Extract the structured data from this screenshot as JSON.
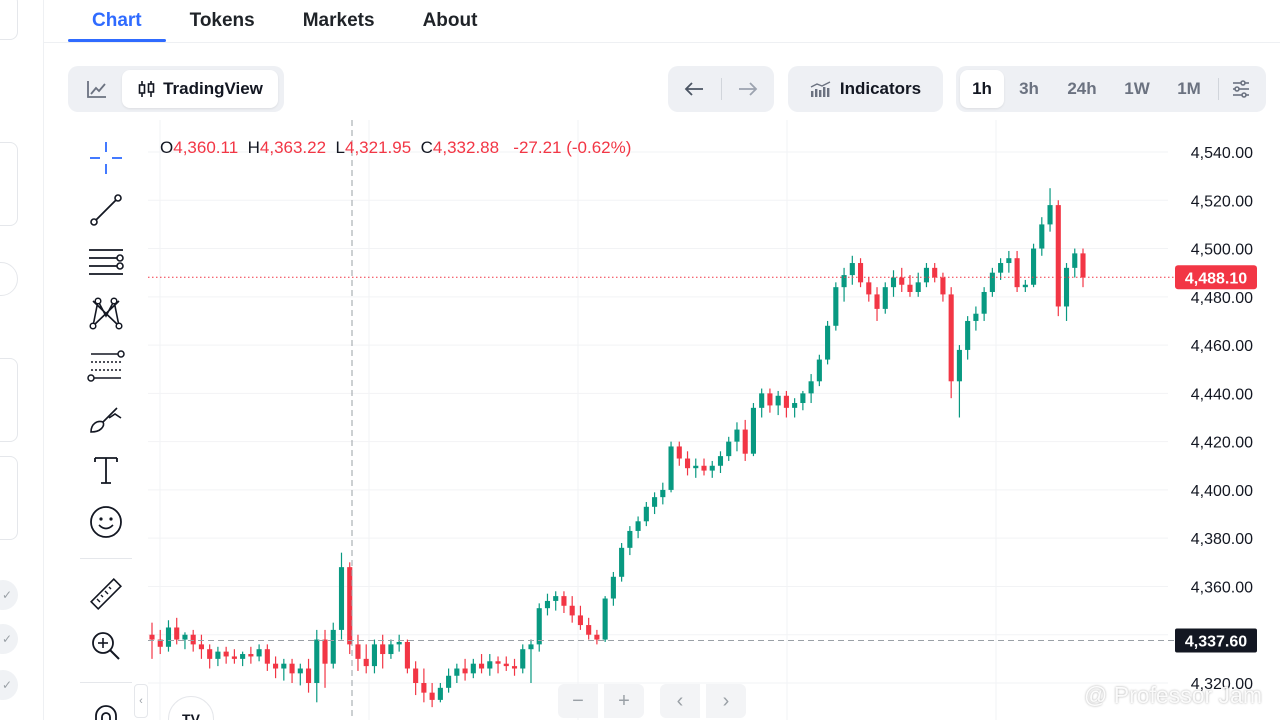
{
  "tabs": [
    {
      "label": "Chart",
      "active": true
    },
    {
      "label": "Tokens",
      "active": false
    },
    {
      "label": "Markets",
      "active": false
    },
    {
      "label": "About",
      "active": false
    }
  ],
  "toolbar": {
    "chart_type_icon": "line-chart-icon",
    "tradingview_label": "TradingView",
    "tradingview_icon": "candles-icon",
    "back_icon": "arrow-left-icon",
    "forward_icon": "arrow-right-icon",
    "indicators_label": "Indicators",
    "timeframes": [
      "1h",
      "3h",
      "24h",
      "1W",
      "1M"
    ],
    "active_timeframe": "1h",
    "settings_icon": "sliders-icon"
  },
  "drawing_tools": [
    "crosshair-icon",
    "trend-line-icon",
    "horizontal-lines-icon",
    "pattern-icon",
    "fib-retracement-icon",
    "brush-icon",
    "text-icon",
    "emoji-icon",
    "ruler-icon",
    "zoom-in-icon",
    "magnet-icon"
  ],
  "ohlc": {
    "o_label": "O",
    "o": "4,360.11",
    "h_label": "H",
    "h": "4,363.22",
    "l_label": "L",
    "l": "4,321.95",
    "c_label": "C",
    "c": "4,332.88",
    "change": "-27.21 (-0.62%)"
  },
  "price_labels": {
    "current": "4,488.10",
    "crosshair": "4,337.60"
  },
  "bottom_controls": {
    "zoom_out": "−",
    "zoom_in": "+",
    "scroll_left": "‹",
    "scroll_right": "›",
    "collapse": "‹"
  },
  "logo_text": "TV",
  "watermark": "@ Professor Jam",
  "colors": {
    "up": "#089981",
    "down": "#f23645",
    "accent": "#2f6bff",
    "crosshair_label_bg": "#131722"
  },
  "chart_data": {
    "type": "candlestick",
    "interval": "1h",
    "y_ticks": [
      "4,540.00",
      "4,520.00",
      "4,500.00",
      "4,480.00",
      "4,460.00",
      "4,440.00",
      "4,420.00",
      "4,400.00",
      "4,380.00",
      "4,360.00",
      "4,340.00",
      "4,320.00"
    ],
    "ylim": [
      4318,
      4548
    ],
    "last_price": 4488.1,
    "crosshair_price": 4337.6,
    "ohlc": [
      [
        4340,
        4345,
        4330,
        4338
      ],
      [
        4338,
        4342,
        4332,
        4335
      ],
      [
        4335,
        4346,
        4333,
        4343
      ],
      [
        4343,
        4347,
        4336,
        4338
      ],
      [
        4338,
        4341,
        4334,
        4340
      ],
      [
        4340,
        4342,
        4333,
        4336
      ],
      [
        4336,
        4340,
        4330,
        4334
      ],
      [
        4334,
        4336,
        4326,
        4330
      ],
      [
        4330,
        4335,
        4327,
        4333
      ],
      [
        4333,
        4335,
        4328,
        4331
      ],
      [
        4331,
        4334,
        4328,
        4330
      ],
      [
        4330,
        4333,
        4327,
        4332
      ],
      [
        4332,
        4335,
        4328,
        4331
      ],
      [
        4331,
        4336,
        4329,
        4334
      ],
      [
        4334,
        4336,
        4325,
        4328
      ],
      [
        4328,
        4331,
        4322,
        4326
      ],
      [
        4326,
        4330,
        4321,
        4328
      ],
      [
        4328,
        4330,
        4320,
        4324
      ],
      [
        4324,
        4328,
        4319,
        4326
      ],
      [
        4326,
        4330,
        4316,
        4320
      ],
      [
        4320,
        4342,
        4312,
        4338
      ],
      [
        4338,
        4342,
        4318,
        4328
      ],
      [
        4328,
        4345,
        4326,
        4342
      ],
      [
        4342,
        4374,
        4338,
        4368
      ],
      [
        4368,
        4370,
        4332,
        4336
      ],
      [
        4336,
        4340,
        4325,
        4330
      ],
      [
        4330,
        4336,
        4324,
        4327
      ],
      [
        4327,
        4338,
        4324,
        4336
      ],
      [
        4336,
        4340,
        4326,
        4332
      ],
      [
        4332,
        4338,
        4330,
        4336
      ],
      [
        4336,
        4340,
        4333,
        4337
      ],
      [
        4337,
        4338,
        4324,
        4326
      ],
      [
        4326,
        4329,
        4315,
        4320
      ],
      [
        4320,
        4326,
        4312,
        4316
      ],
      [
        4316,
        4320,
        4310,
        4313
      ],
      [
        4313,
        4320,
        4312,
        4318
      ],
      [
        4318,
        4326,
        4316,
        4323
      ],
      [
        4323,
        4328,
        4320,
        4326
      ],
      [
        4326,
        4330,
        4321,
        4324
      ],
      [
        4324,
        4330,
        4322,
        4328
      ],
      [
        4328,
        4332,
        4324,
        4326
      ],
      [
        4326,
        4332,
        4323,
        4329
      ],
      [
        4329,
        4331,
        4324,
        4328
      ],
      [
        4328,
        4331,
        4325,
        4327
      ],
      [
        4327,
        4330,
        4323,
        4326
      ],
      [
        4326,
        4336,
        4324,
        4334
      ],
      [
        4334,
        4338,
        4320,
        4336
      ],
      [
        4336,
        4353,
        4333,
        4351
      ],
      [
        4351,
        4357,
        4348,
        4354
      ],
      [
        4354,
        4358,
        4350,
        4356
      ],
      [
        4356,
        4358,
        4349,
        4352
      ],
      [
        4352,
        4356,
        4345,
        4348
      ],
      [
        4348,
        4352,
        4342,
        4344
      ],
      [
        4344,
        4347,
        4338,
        4340
      ],
      [
        4340,
        4342,
        4336,
        4338
      ],
      [
        4338,
        4356,
        4337,
        4355
      ],
      [
        4355,
        4366,
        4352,
        4364
      ],
      [
        4364,
        4378,
        4362,
        4376
      ],
      [
        4376,
        4385,
        4373,
        4383
      ],
      [
        4383,
        4389,
        4380,
        4387
      ],
      [
        4387,
        4395,
        4385,
        4393
      ],
      [
        4393,
        4399,
        4390,
        4397
      ],
      [
        4397,
        4403,
        4394,
        4400
      ],
      [
        4400,
        4420,
        4399,
        4418
      ],
      [
        4418,
        4420,
        4410,
        4413
      ],
      [
        4413,
        4416,
        4406,
        4409
      ],
      [
        4409,
        4413,
        4405,
        4410
      ],
      [
        4410,
        4413,
        4406,
        4408
      ],
      [
        4408,
        4412,
        4405,
        4410
      ],
      [
        4410,
        4416,
        4407,
        4414
      ],
      [
        4414,
        4422,
        4412,
        4420
      ],
      [
        4420,
        4428,
        4416,
        4425
      ],
      [
        4425,
        4429,
        4412,
        4415
      ],
      [
        4415,
        4436,
        4414,
        4434
      ],
      [
        4434,
        4442,
        4430,
        4440
      ],
      [
        4440,
        4442,
        4432,
        4435
      ],
      [
        4435,
        4441,
        4431,
        4439
      ],
      [
        4439,
        4441,
        4430,
        4434
      ],
      [
        4434,
        4438,
        4430,
        4436
      ],
      [
        4436,
        4441,
        4433,
        4440
      ],
      [
        4440,
        4448,
        4436,
        4445
      ],
      [
        4445,
        4456,
        4443,
        4454
      ],
      [
        4454,
        4470,
        4452,
        4468
      ],
      [
        4468,
        4486,
        4466,
        4484
      ],
      [
        4484,
        4492,
        4478,
        4489
      ],
      [
        4489,
        4497,
        4485,
        4494
      ],
      [
        4494,
        4496,
        4484,
        4486
      ],
      [
        4486,
        4488,
        4478,
        4481
      ],
      [
        4481,
        4484,
        4470,
        4475
      ],
      [
        4475,
        4486,
        4473,
        4484
      ],
      [
        4484,
        4491,
        4480,
        4488
      ],
      [
        4488,
        4492,
        4482,
        4485
      ],
      [
        4485,
        4489,
        4480,
        4482
      ],
      [
        4482,
        4490,
        4480,
        4486
      ],
      [
        4486,
        4494,
        4484,
        4492
      ],
      [
        4492,
        4494,
        4486,
        4488
      ],
      [
        4488,
        4490,
        4478,
        4481
      ],
      [
        4481,
        4484,
        4438,
        4445
      ],
      [
        4445,
        4460,
        4430,
        4458
      ],
      [
        4458,
        4472,
        4454,
        4470
      ],
      [
        4470,
        4476,
        4466,
        4473
      ],
      [
        4473,
        4484,
        4470,
        4482
      ],
      [
        4482,
        4492,
        4480,
        4490
      ],
      [
        4490,
        4496,
        4487,
        4494
      ],
      [
        4494,
        4499,
        4490,
        4496
      ],
      [
        4496,
        4499,
        4482,
        4484
      ],
      [
        4484,
        4487,
        4482,
        4485
      ],
      [
        4485,
        4502,
        4484,
        4500
      ],
      [
        4500,
        4513,
        4497,
        4510
      ],
      [
        4510,
        4525,
        4507,
        4518
      ],
      [
        4518,
        4520,
        4472,
        4476
      ],
      [
        4476,
        4494,
        4470,
        4492
      ],
      [
        4492,
        4500,
        4488,
        4498
      ],
      [
        4498,
        4500,
        4484,
        4488
      ]
    ]
  }
}
